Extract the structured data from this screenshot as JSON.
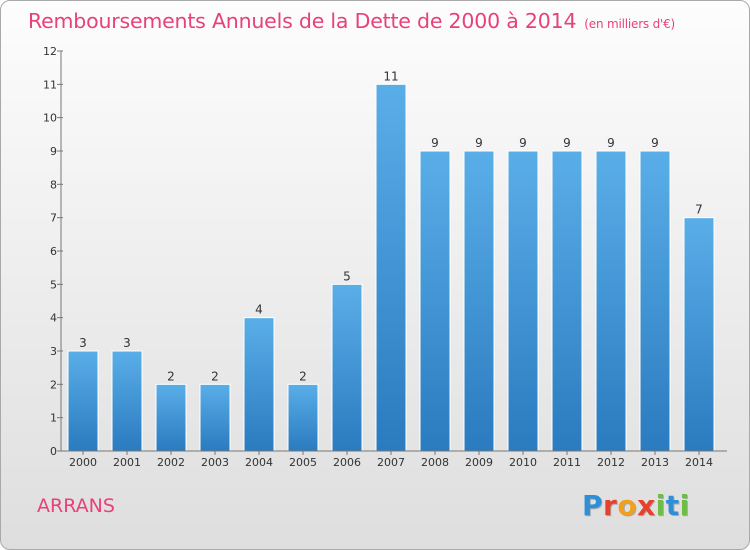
{
  "header": {
    "title": "Remboursements Annuels de la Dette de 2000 à 2014",
    "subtitle": "(en milliers d'€)"
  },
  "footer": {
    "place": "ARRANS",
    "logo_letters": [
      "P",
      "r",
      "o",
      "x",
      "i",
      "t",
      "i"
    ]
  },
  "colors": {
    "title": "#e8407a",
    "bar_light": "#5aaee8",
    "bar_dark": "#2a7bbf",
    "logo": [
      "#2f8fd6",
      "#e8402a",
      "#f0a020",
      "#e8402a",
      "#6cbe45",
      "#2f8fd6",
      "#6cbe45"
    ]
  },
  "chart_data": {
    "type": "bar",
    "categories": [
      "2000",
      "2001",
      "2002",
      "2003",
      "2004",
      "2005",
      "2006",
      "2007",
      "2008",
      "2009",
      "2010",
      "2011",
      "2012",
      "2013",
      "2014"
    ],
    "values": [
      3,
      3,
      2,
      2,
      4,
      2,
      5,
      11,
      9,
      9,
      9,
      9,
      9,
      9,
      7
    ],
    "data_labels": [
      "3",
      "3",
      "2",
      "2",
      "4",
      "2",
      "5",
      "11",
      "9",
      "9",
      "9",
      "9",
      "9",
      "9",
      "7"
    ],
    "title": "Remboursements Annuels de la Dette de 2000 à 2014",
    "subtitle": "(en milliers d'€)",
    "xlabel": "",
    "ylabel": "",
    "ylim": [
      0,
      12
    ],
    "yticks": [
      "0",
      "1",
      "2",
      "3",
      "4",
      "5",
      "6",
      "7",
      "8",
      "9",
      "10",
      "11",
      "12"
    ],
    "grid": false,
    "legend": "none"
  }
}
